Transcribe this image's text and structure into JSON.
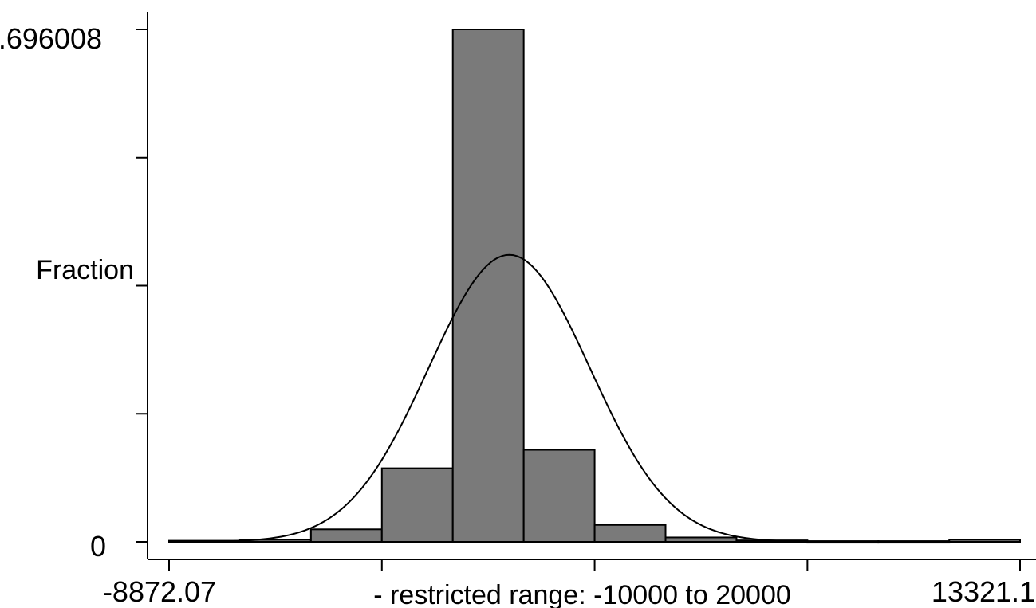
{
  "chart_data": {
    "type": "bar",
    "subtype": "histogram",
    "xlabel": "- restricted range: -10000 to 20000",
    "ylabel": "Fraction",
    "x_tick_labels": [
      "-8872.07",
      "13321.1"
    ],
    "y_tick_labels": [
      "0",
      ".696008"
    ],
    "xlim": [
      -8872.07,
      13321.1
    ],
    "ylim": [
      0,
      0.696008
    ],
    "bins": [
      {
        "x0": -8872.07,
        "x1": -7022.3,
        "value": 0.0015
      },
      {
        "x0": -7022.3,
        "x1": -5172.6,
        "value": 0.003
      },
      {
        "x0": -5172.6,
        "x1": -3322.9,
        "value": 0.017
      },
      {
        "x0": -3322.9,
        "x1": -1473.2,
        "value": 0.1
      },
      {
        "x0": -1473.2,
        "x1": 376.5,
        "value": 0.696008
      },
      {
        "x0": 376.5,
        "x1": 2226.2,
        "value": 0.125
      },
      {
        "x0": 2226.2,
        "x1": 4075.9,
        "value": 0.023
      },
      {
        "x0": 4075.9,
        "x1": 5925.6,
        "value": 0.006
      },
      {
        "x0": 5925.6,
        "x1": 7775.3,
        "value": 0.002
      },
      {
        "x0": 7775.3,
        "x1": 9625.0,
        "value": 0.001
      },
      {
        "x0": 9625.0,
        "x1": 11474.7,
        "value": 0.001
      },
      {
        "x0": 11474.7,
        "x1": 13321.1,
        "value": 0.003
      }
    ],
    "normal_curve": {
      "mean": 0,
      "sd": 2100,
      "peak": 0.39
    },
    "x_major_ticks": [
      -8872.07,
      -3322.9,
      2226.2,
      7775.3,
      13321.1
    ],
    "y_minor_ticks": [
      0,
      0.174,
      0.348,
      0.522,
      0.696008
    ],
    "colors": {
      "bar_fill": "#7a7a7a",
      "bar_stroke": "#000000",
      "line": "#000000",
      "background": "#ffffff"
    },
    "grid": false
  }
}
